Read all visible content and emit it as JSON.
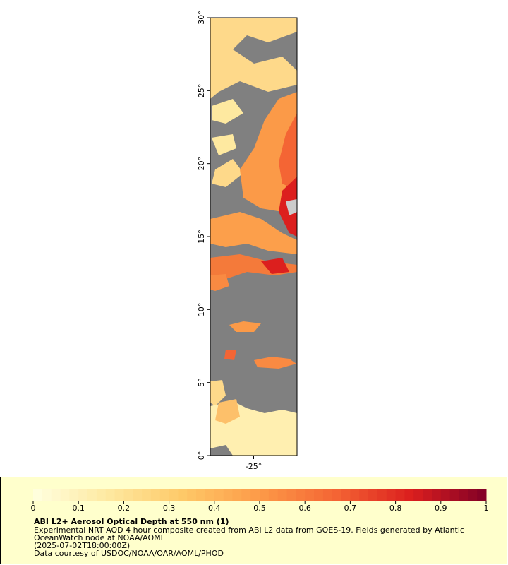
{
  "map": {
    "xlim": [
      -28,
      -22
    ],
    "ylim": [
      0,
      30
    ],
    "yticks": [
      {
        "value": 0,
        "label": "0°"
      },
      {
        "value": 5,
        "label": "5°"
      },
      {
        "value": 10,
        "label": "10°"
      },
      {
        "value": 15,
        "label": "15°"
      },
      {
        "value": 20,
        "label": "20°"
      },
      {
        "value": 25,
        "label": "25°"
      },
      {
        "value": 30,
        "label": "30°"
      }
    ],
    "xticks": [
      {
        "value": -25,
        "label": "-25°"
      }
    ]
  },
  "colorbar": {
    "range": [
      0,
      1
    ],
    "ticks": [
      0,
      0.1,
      0.2,
      0.3,
      0.4,
      0.5,
      0.6,
      0.7,
      0.8,
      0.9,
      1
    ],
    "colors": [
      "#ffffe0",
      "#fee9a0",
      "#fec867",
      "#fd9a48",
      "#f46534",
      "#dc1f1e",
      "#800026"
    ]
  },
  "caption": {
    "title": "ABI L2+ Aerosol Optical Depth at 550 nm (1)",
    "lines": [
      "Experimental NRT AOD 4 hour composite created from ABI L2 data from GOES-19. Fields generated by Atlantic",
      "OceanWatch node at NOAA/AOML",
      "(2025-07-02T18:00:00Z)",
      "Data courtesy of USDOC/NOAA/OAR/AOML/PHOD"
    ]
  }
}
